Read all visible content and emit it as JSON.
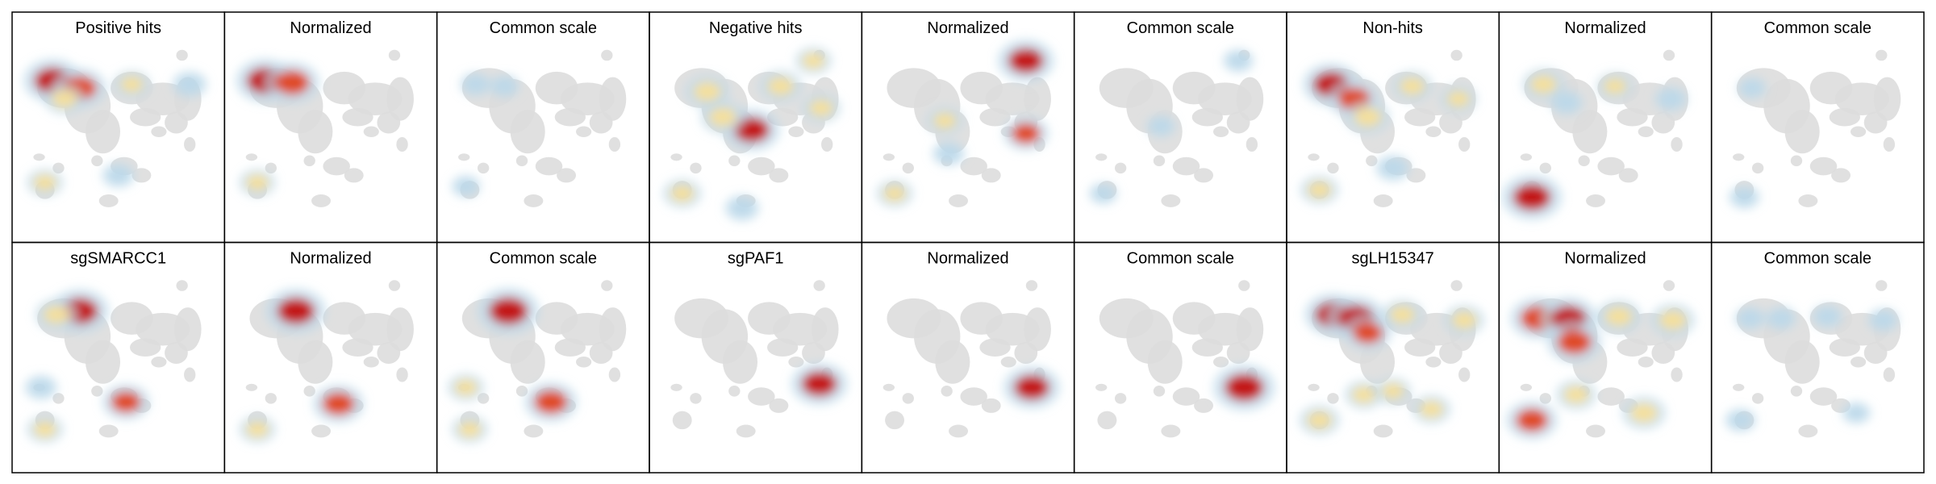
{
  "chart_data": {
    "type": "heatmap",
    "rows": 2,
    "cols": 9,
    "colors": {
      "background_cells": "#dddddd",
      "low": "#bcd8ea",
      "mid": "#f5df9a",
      "high": "#e0421c",
      "max": "#c21010",
      "frame": "#000000"
    },
    "panels": [
      {
        "title": "Positive hits",
        "hotspots": [
          [
            0.16,
            0.2,
            0.9
          ],
          [
            0.3,
            0.24,
            0.75
          ],
          [
            0.22,
            0.3,
            0.4
          ],
          [
            0.57,
            0.22,
            0.3
          ],
          [
            0.87,
            0.22,
            0.25
          ],
          [
            0.12,
            0.76,
            0.3
          ],
          [
            0.5,
            0.72,
            0.2
          ]
        ]
      },
      {
        "title": "Normalized",
        "hotspots": [
          [
            0.16,
            0.2,
            0.9
          ],
          [
            0.3,
            0.21,
            0.8
          ],
          [
            0.12,
            0.76,
            0.3
          ]
        ]
      },
      {
        "title": "Common scale",
        "hotspots": [
          [
            0.15,
            0.22,
            0.15
          ],
          [
            0.3,
            0.23,
            0.12
          ],
          [
            0.1,
            0.78,
            0.1
          ]
        ]
      },
      {
        "title": "Negative hits",
        "hotspots": [
          [
            0.25,
            0.26,
            0.5
          ],
          [
            0.48,
            0.47,
            0.85
          ],
          [
            0.33,
            0.4,
            0.5
          ],
          [
            0.63,
            0.23,
            0.45
          ],
          [
            0.84,
            0.35,
            0.35
          ],
          [
            0.8,
            0.09,
            0.3
          ],
          [
            0.12,
            0.82,
            0.35
          ],
          [
            0.43,
            0.9,
            0.25
          ]
        ]
      },
      {
        "title": "Normalized",
        "hotspots": [
          [
            0.8,
            0.09,
            0.85
          ],
          [
            0.8,
            0.49,
            0.55
          ],
          [
            0.38,
            0.42,
            0.3
          ],
          [
            0.12,
            0.82,
            0.3
          ],
          [
            0.4,
            0.6,
            0.2
          ]
        ]
      },
      {
        "title": "Common scale",
        "hotspots": [
          [
            0.8,
            0.09,
            0.15
          ],
          [
            0.4,
            0.45,
            0.1
          ],
          [
            0.1,
            0.82,
            0.08
          ]
        ]
      },
      {
        "title": "Non-hits",
        "hotspots": [
          [
            0.18,
            0.22,
            0.85
          ],
          [
            0.3,
            0.3,
            0.7
          ],
          [
            0.37,
            0.4,
            0.5
          ],
          [
            0.6,
            0.23,
            0.4
          ],
          [
            0.84,
            0.3,
            0.3
          ],
          [
            0.12,
            0.8,
            0.35
          ],
          [
            0.5,
            0.68,
            0.25
          ]
        ]
      },
      {
        "title": "Normalized",
        "hotspots": [
          [
            0.12,
            0.84,
            0.95
          ],
          [
            0.18,
            0.22,
            0.45
          ],
          [
            0.55,
            0.23,
            0.3
          ],
          [
            0.3,
            0.32,
            0.2
          ],
          [
            0.84,
            0.3,
            0.2
          ]
        ]
      },
      {
        "title": "Common scale",
        "hotspots": [
          [
            0.12,
            0.84,
            0.15
          ],
          [
            0.16,
            0.24,
            0.1
          ]
        ]
      },
      {
        "title": "sgSMARCC1",
        "hotspots": [
          [
            0.3,
            0.2,
            0.9
          ],
          [
            0.18,
            0.22,
            0.45
          ],
          [
            0.54,
            0.7,
            0.6
          ],
          [
            0.12,
            0.85,
            0.3
          ],
          [
            0.1,
            0.62,
            0.2
          ]
        ]
      },
      {
        "title": "Normalized",
        "hotspots": [
          [
            0.32,
            0.2,
            0.95
          ],
          [
            0.54,
            0.71,
            0.7
          ],
          [
            0.12,
            0.85,
            0.3
          ]
        ]
      },
      {
        "title": "Common scale",
        "hotspots": [
          [
            0.32,
            0.2,
            1.0
          ],
          [
            0.54,
            0.7,
            0.75
          ],
          [
            0.12,
            0.85,
            0.3
          ],
          [
            0.1,
            0.62,
            0.3
          ]
        ]
      },
      {
        "title": "sgPAF1",
        "hotspots": [
          [
            0.83,
            0.6,
            0.85
          ]
        ]
      },
      {
        "title": "Normalized",
        "hotspots": [
          [
            0.83,
            0.62,
            0.85
          ]
        ]
      },
      {
        "title": "Common scale",
        "hotspots": [
          [
            0.83,
            0.62,
            1.0
          ]
        ]
      },
      {
        "title": "sgLH15347",
        "hotspots": [
          [
            0.19,
            0.22,
            0.85
          ],
          [
            0.31,
            0.24,
            0.9
          ],
          [
            0.37,
            0.32,
            0.6
          ],
          [
            0.55,
            0.22,
            0.4
          ],
          [
            0.87,
            0.25,
            0.4
          ],
          [
            0.12,
            0.8,
            0.4
          ],
          [
            0.35,
            0.66,
            0.35
          ],
          [
            0.7,
            0.74,
            0.35
          ],
          [
            0.5,
            0.64,
            0.3
          ]
        ]
      },
      {
        "title": "Normalized",
        "hotspots": [
          [
            0.15,
            0.24,
            0.8
          ],
          [
            0.31,
            0.24,
            0.85
          ],
          [
            0.34,
            0.37,
            0.8
          ],
          [
            0.57,
            0.23,
            0.5
          ],
          [
            0.85,
            0.25,
            0.5
          ],
          [
            0.12,
            0.8,
            0.7
          ],
          [
            0.35,
            0.66,
            0.4
          ],
          [
            0.7,
            0.76,
            0.5
          ]
        ]
      },
      {
        "title": "Common scale",
        "hotspots": [
          [
            0.15,
            0.24,
            0.15
          ],
          [
            0.31,
            0.24,
            0.15
          ],
          [
            0.55,
            0.23,
            0.15
          ],
          [
            0.84,
            0.25,
            0.15
          ],
          [
            0.1,
            0.8,
            0.15
          ],
          [
            0.7,
            0.76,
            0.1
          ]
        ]
      }
    ]
  }
}
